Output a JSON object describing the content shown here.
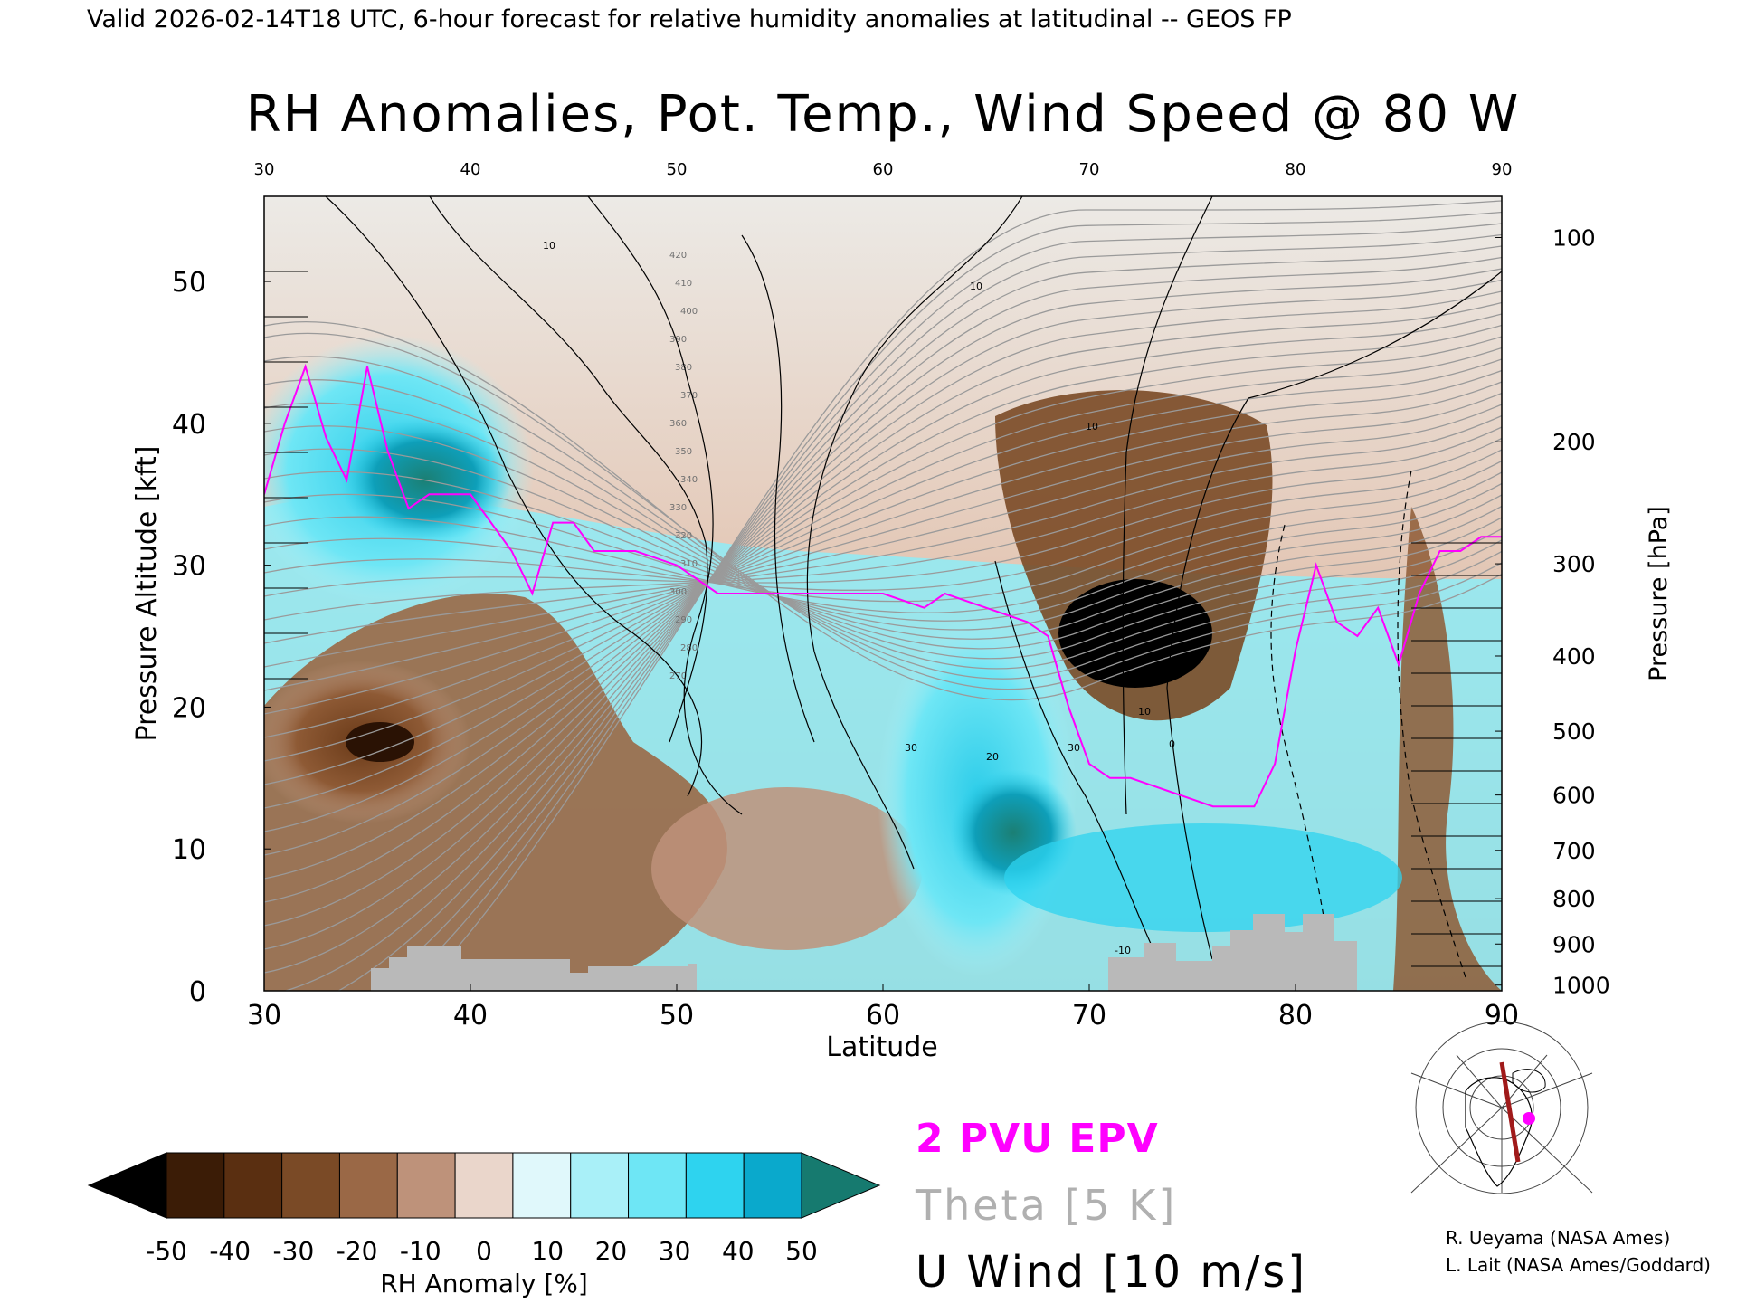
{
  "header": {
    "valid_line": "Valid 2026-02-14T18 UTC, 6-hour forecast for relative humidity anomalies at latitudinal -- GEOS FP"
  },
  "chart_data": {
    "type": "heatmap",
    "title": "RH Anomalies, Pot. Temp., Wind Speed @ 80 W",
    "xlabel": "Latitude",
    "ylabel_left": "Pressure Altitude [kft]",
    "ylabel_right": "Pressure [hPa]",
    "xlim": [
      30,
      90
    ],
    "ylim": [
      0,
      56
    ],
    "x_ticks": [
      "30",
      "40",
      "50",
      "60",
      "70",
      "80",
      "90"
    ],
    "y_ticks": [
      "0",
      "10",
      "20",
      "30",
      "40",
      "50"
    ],
    "pressure_ticks": [
      "100",
      "200",
      "300",
      "400",
      "500",
      "600",
      "700",
      "800",
      "900",
      "1000"
    ],
    "pressure_tick_kft": [
      53.1,
      38.7,
      30.1,
      23.6,
      18.3,
      13.8,
      9.9,
      6.5,
      3.3,
      0.4
    ],
    "colorbar": {
      "label": "RH Anomaly [%]",
      "ticks": [
        "-50",
        "-40",
        "-30",
        "-20",
        "-10",
        "0",
        "10",
        "20",
        "30",
        "40",
        "50"
      ],
      "colors": [
        "#3b1c06",
        "#5a2f11",
        "#7a4a26",
        "#9a6846",
        "#be927a",
        "#ead6cb",
        "#e0f8fb",
        "#a9f0f8",
        "#6ee6f5",
        "#2ed3ef",
        "#0aa9cc",
        "#167a6f"
      ],
      "under_color": "#000000",
      "over_color": "#167a6f"
    },
    "legend": [
      {
        "label": "2 PVU EPV",
        "color": "#ff00ff"
      },
      {
        "label": "Theta [5 K]",
        "color": "#b0b0b0"
      },
      {
        "label": "U Wind [10 m/s]",
        "color": "#000000"
      }
    ],
    "theta_labels": [
      "420",
      "410",
      "400",
      "390",
      "380",
      "370",
      "360",
      "350",
      "340",
      "330",
      "320",
      "310",
      "300",
      "290",
      "280",
      "270"
    ],
    "pv2_tropopause": {
      "lat": [
        30,
        31,
        32,
        33,
        34,
        35,
        36,
        37,
        38,
        40,
        42,
        43,
        44,
        45,
        46,
        48,
        50,
        52,
        54,
        56,
        58,
        60,
        62,
        63,
        65,
        67,
        68,
        69,
        70,
        71,
        72,
        74,
        76,
        78,
        79,
        80,
        81,
        82,
        83,
        84,
        85,
        86,
        87,
        88,
        89,
        90
      ],
      "kft": [
        35,
        40,
        44,
        39,
        36,
        44,
        38,
        34,
        35,
        35,
        31,
        28,
        33,
        33,
        31,
        31,
        30,
        28,
        28,
        28,
        28,
        28,
        27,
        28,
        27,
        26,
        25,
        20,
        16,
        15,
        15,
        14,
        13,
        13,
        16,
        24,
        30,
        26,
        25,
        27,
        23,
        28,
        31,
        31,
        32,
        32
      ]
    },
    "u_wind_contours_labels": [
      "10",
      "10",
      "10",
      "20",
      "30",
      "30",
      "10",
      "0",
      "-10"
    ]
  },
  "side_map": {
    "description_visible": false
  },
  "credits": {
    "line1": "R. Ueyama (NASA Ames)",
    "line2": "L. Lait (NASA Ames/Goddard)"
  }
}
